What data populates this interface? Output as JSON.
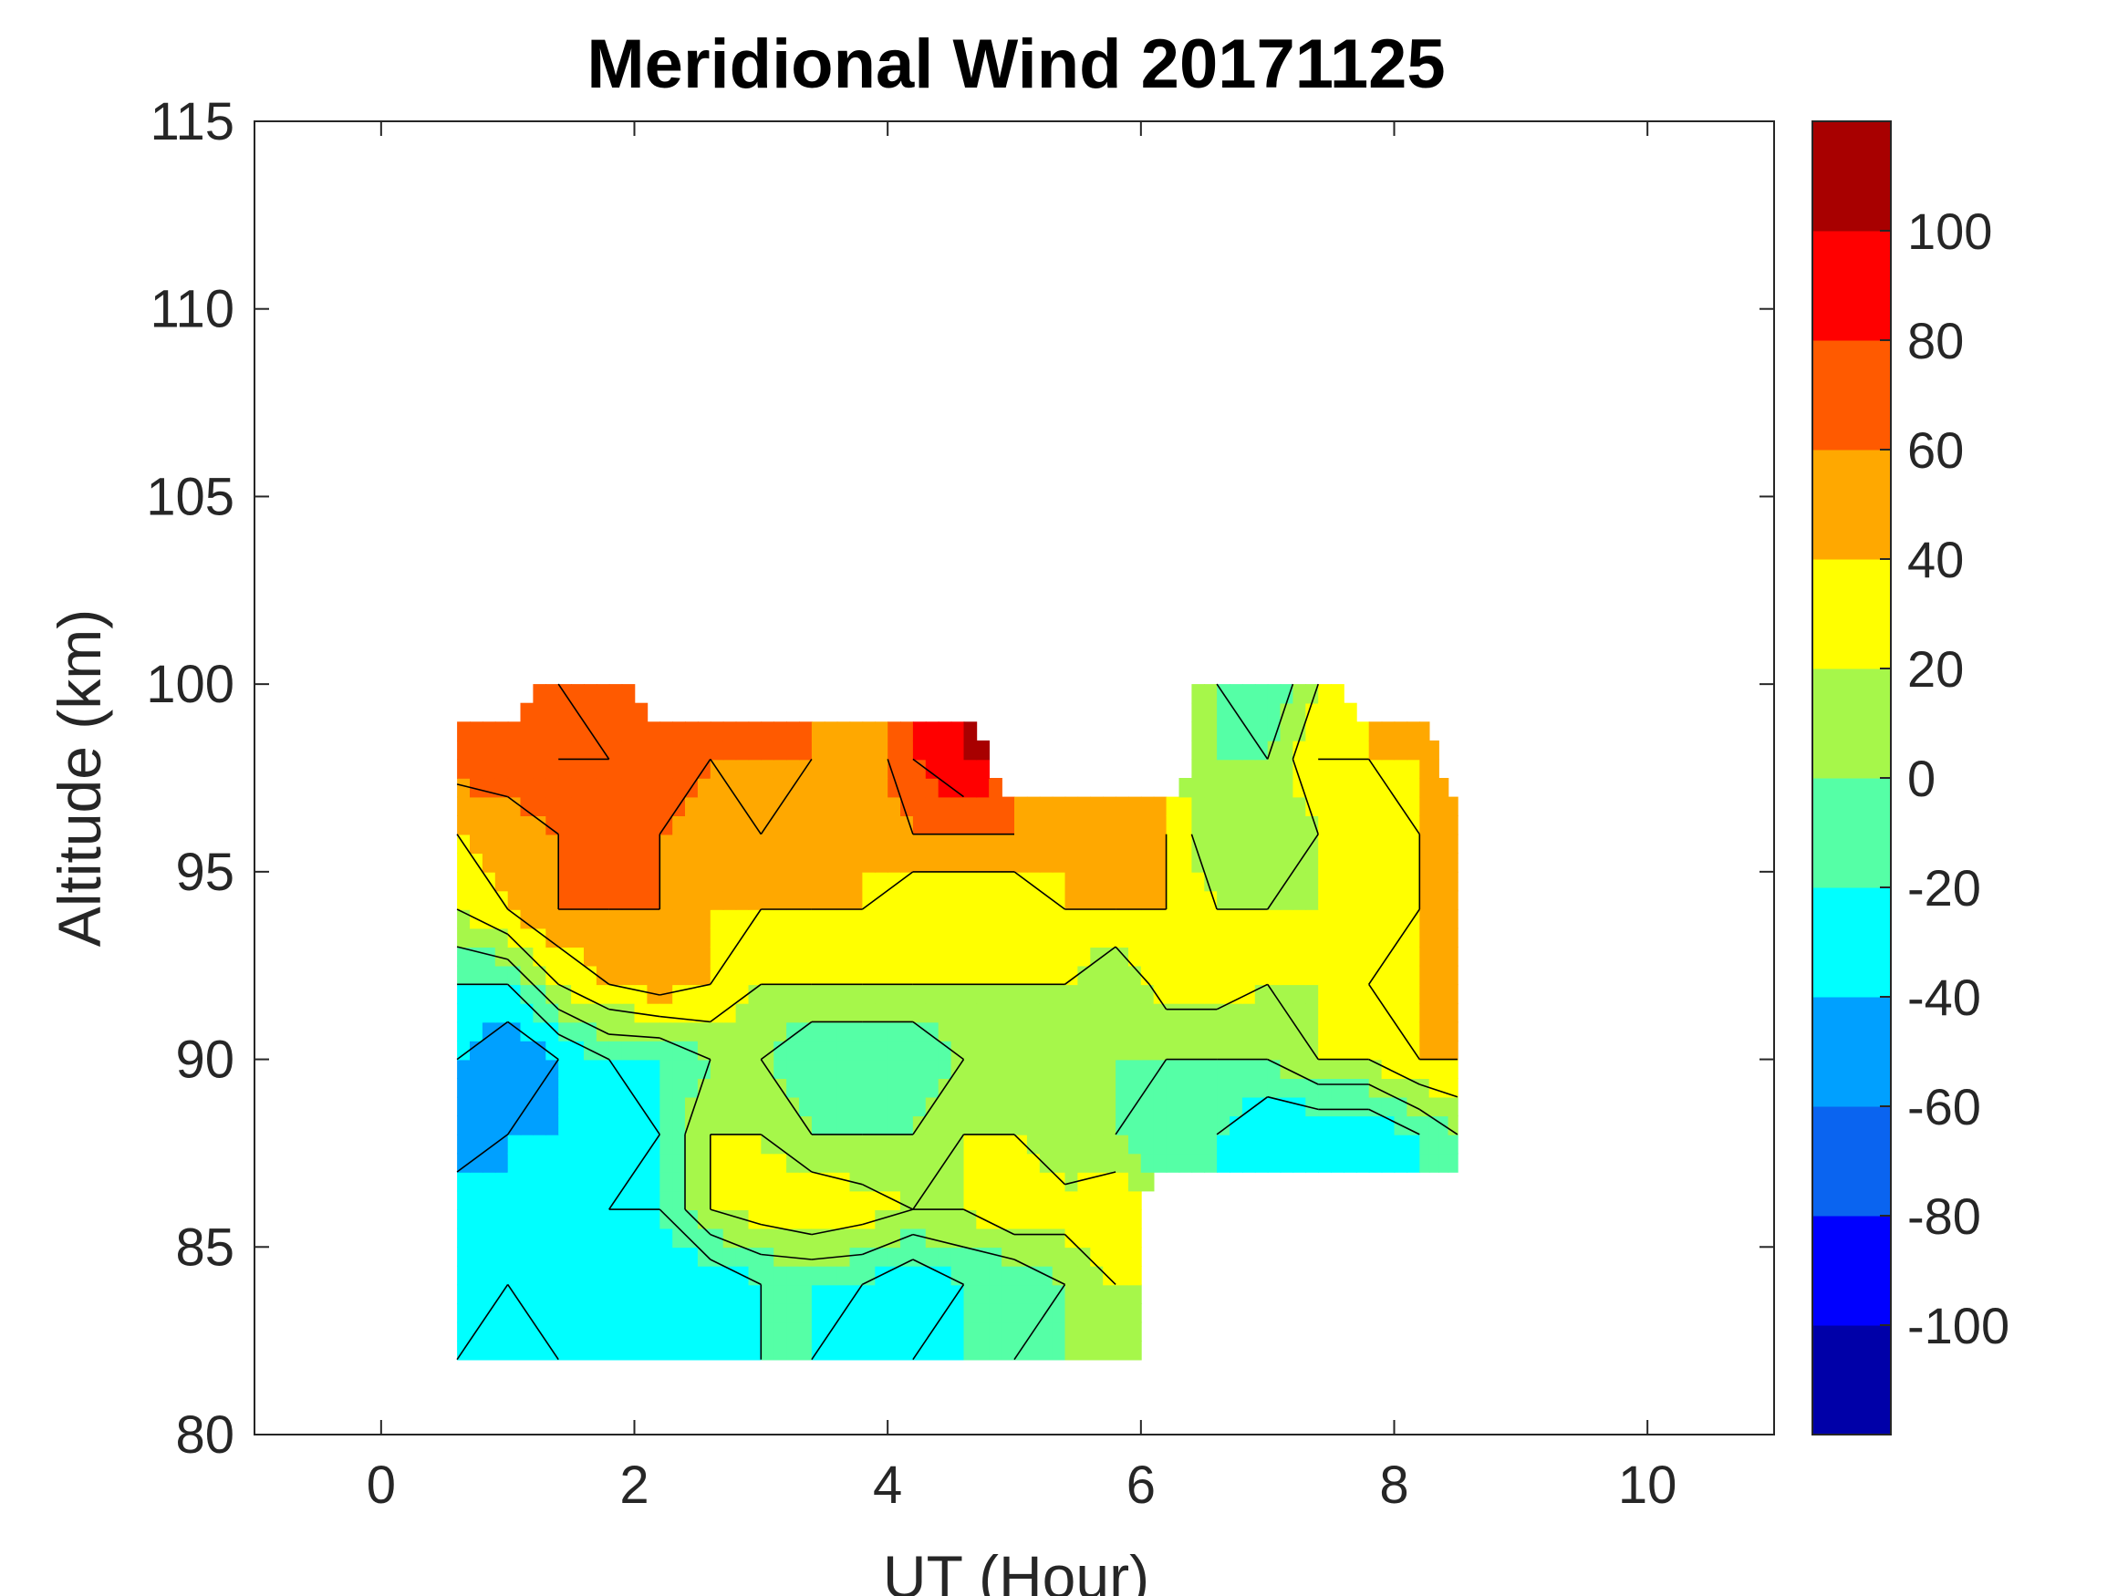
{
  "chart_data": {
    "type": "heatmap",
    "subtype": "filled-contour",
    "title": "Meridional Wind 20171125",
    "xlabel": "UT (Hour)",
    "ylabel": "Altitude (km)",
    "xlim": [
      -1,
      11
    ],
    "ylim": [
      80,
      115
    ],
    "xticks": [
      0,
      2,
      4,
      6,
      8,
      10
    ],
    "yticks": [
      80,
      85,
      90,
      95,
      100,
      105,
      110,
      115
    ],
    "colorbar": {
      "limits": [
        -120,
        120
      ],
      "ticks": [
        -100,
        -80,
        -60,
        -40,
        -20,
        0,
        20,
        40,
        60,
        80,
        100
      ],
      "colors": [
        "#0000a8",
        "#0000ff",
        "#0a64f0",
        "#00a0ff",
        "#00ffff",
        "#55ffa6",
        "#a6f74a",
        "#ffff00",
        "#ffa800",
        "#ff5a00",
        "#ff0000",
        "#a80000"
      ]
    },
    "contour_levels": [
      -100,
      -80,
      -60,
      -40,
      -20,
      0,
      20,
      40,
      60,
      80,
      100
    ],
    "grid_ut": [
      0.6,
      1.0,
      1.4,
      1.8,
      2.2,
      2.6,
      3.0,
      3.4,
      3.8,
      4.2,
      4.6,
      5.0,
      5.4,
      5.8,
      6.2,
      6.6,
      7.0,
      7.4,
      7.8,
      8.2,
      8.5
    ],
    "grid_alt": [
      82,
      84,
      86,
      88,
      90,
      92,
      94,
      96,
      98,
      100
    ],
    "wind": [
      [
        -20,
        -20,
        -20,
        -40,
        -40,
        -40,
        -20,
        -20,
        -40,
        -20,
        -20,
        0,
        0,
        0,
        null,
        null,
        null,
        null,
        null,
        null,
        null
      ],
      [
        -40,
        -20,
        -40,
        -40,
        -40,
        -40,
        -20,
        -20,
        -20,
        -40,
        -20,
        -20,
        0,
        20,
        null,
        null,
        null,
        null,
        null,
        null,
        null
      ],
      [
        -20,
        -40,
        -40,
        -20,
        -20,
        20,
        30,
        40,
        30,
        20,
        20,
        40,
        30,
        40,
        null,
        null,
        null,
        null,
        null,
        null,
        null
      ],
      [
        -60,
        -40,
        -40,
        -40,
        -20,
        20,
        20,
        0,
        0,
        0,
        20,
        20,
        0,
        0,
        -20,
        -20,
        -40,
        -40,
        -40,
        -20,
        0
      ],
      [
        -40,
        -60,
        -40,
        -20,
        -20,
        0,
        0,
        -20,
        -20,
        -20,
        0,
        0,
        0,
        0,
        0,
        0,
        0,
        20,
        20,
        40,
        40
      ],
      [
        -20,
        -20,
        20,
        40,
        50,
        40,
        20,
        20,
        20,
        20,
        20,
        20,
        20,
        0,
        30,
        30,
        20,
        20,
        40,
        40,
        40
      ],
      [
        20,
        40,
        60,
        60,
        60,
        40,
        40,
        40,
        40,
        20,
        20,
        20,
        40,
        40,
        40,
        20,
        20,
        20,
        20,
        40,
        40
      ],
      [
        40,
        50,
        60,
        60,
        60,
        50,
        60,
        50,
        40,
        60,
        60,
        60,
        40,
        40,
        40,
        0,
        0,
        20,
        20,
        40,
        40
      ],
      [
        70,
        70,
        80,
        80,
        70,
        60,
        60,
        60,
        40,
        80,
        100,
        null,
        null,
        null,
        null,
        0,
        0,
        40,
        40,
        40,
        null
      ],
      [
        null,
        null,
        80,
        70,
        null,
        null,
        null,
        null,
        null,
        null,
        null,
        null,
        null,
        null,
        null,
        0,
        -20,
        20,
        null,
        null,
        null
      ]
    ]
  }
}
